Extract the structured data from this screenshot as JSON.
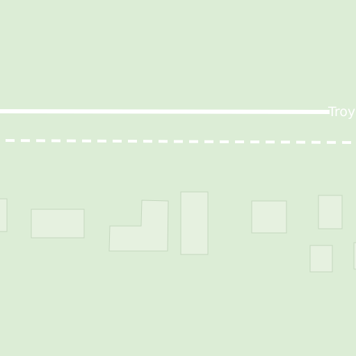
{
  "map": {
    "background_color": "#dcedd6",
    "road_color": "#ffffff",
    "building_fill": "#e6f1e0",
    "building_stroke": "#c3d6bd",
    "street_label": "Troy"
  }
}
